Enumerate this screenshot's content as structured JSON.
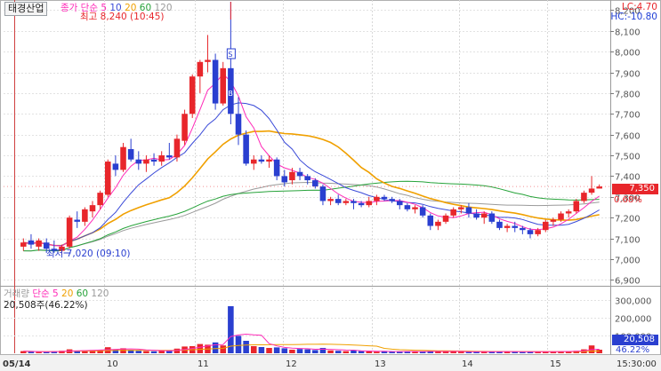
{
  "header": {
    "stock_name": "태경산업",
    "legend_price": [
      {
        "text": "종가 단순",
        "color": "#ff2ab8"
      },
      {
        "text": "5",
        "color": "#ff2ab8"
      },
      {
        "text": "10",
        "color": "#3a4ad8"
      },
      {
        "text": "20",
        "color": "#f0a000"
      },
      {
        "text": "60",
        "color": "#27a33a"
      },
      {
        "text": "120",
        "color": "#9a9a9a"
      }
    ],
    "lc": "LC:4.70",
    "hc": "HC:-10.80"
  },
  "volume_legend": {
    "title": "거래량",
    "items": [
      {
        "text": "단순 5",
        "color": "#ff2ab8"
      },
      {
        "text": "20",
        "color": "#f0a000"
      },
      {
        "text": "60",
        "color": "#27a33a"
      },
      {
        "text": "120",
        "color": "#9a9a9a"
      }
    ],
    "current": "20,508주(46.22%)"
  },
  "annotations": {
    "high": "최고 8,240 (10:45)",
    "low": "최저 7,020 (09:10)"
  },
  "badges": {
    "current_price": "7,350",
    "change_pct": "0.68%",
    "current_volume": "20,508",
    "volume_pct": "46.22%"
  },
  "colors": {
    "up": "#e8262b",
    "down": "#2a3fd0",
    "ma5": "#ff2ab8",
    "ma10": "#3a4ad8",
    "ma20": "#f0a000",
    "ma60": "#27a33a",
    "ma120": "#9a9a9a"
  },
  "chart_data": {
    "type": "candlestick",
    "price_axis": {
      "ticks": [
        "8,200",
        "8,100",
        "8,000",
        "7,900",
        "7,800",
        "7,700",
        "7,600",
        "7,500",
        "7,400",
        "7,300",
        "7,200",
        "7,100",
        "7,000",
        "6,900"
      ],
      "min": 6880,
      "max": 8240
    },
    "volume_axis": {
      "ticks": [
        "300,000",
        "200,000",
        "100,000"
      ]
    },
    "x_axis": {
      "labels": [
        "05/14",
        "10",
        "11",
        "12",
        "13",
        "14",
        "15"
      ],
      "right_label": "15:30:00"
    },
    "ohlc": [
      [
        7060,
        7100,
        7040,
        7080
      ],
      [
        7090,
        7120,
        7050,
        7070
      ],
      [
        7060,
        7100,
        7040,
        7090
      ],
      [
        7080,
        7100,
        7030,
        7050
      ],
      [
        7050,
        7090,
        7030,
        7040
      ],
      [
        7040,
        7070,
        7020,
        7060
      ],
      [
        7060,
        7210,
        7050,
        7200
      ],
      [
        7190,
        7230,
        7150,
        7180
      ],
      [
        7180,
        7250,
        7160,
        7240
      ],
      [
        7230,
        7280,
        7200,
        7260
      ],
      [
        7260,
        7330,
        7240,
        7320
      ],
      [
        7310,
        7480,
        7300,
        7470
      ],
      [
        7460,
        7500,
        7400,
        7430
      ],
      [
        7430,
        7560,
        7420,
        7540
      ],
      [
        7530,
        7580,
        7470,
        7480
      ],
      [
        7480,
        7520,
        7430,
        7460
      ],
      [
        7460,
        7500,
        7420,
        7480
      ],
      [
        7480,
        7510,
        7450,
        7470
      ],
      [
        7470,
        7520,
        7450,
        7500
      ],
      [
        7500,
        7560,
        7480,
        7490
      ],
      [
        7490,
        7600,
        7470,
        7580
      ],
      [
        7570,
        7720,
        7550,
        7700
      ],
      [
        7700,
        7890,
        7680,
        7880
      ],
      [
        7880,
        7960,
        7800,
        7950
      ],
      [
        7950,
        8080,
        7900,
        7960
      ],
      [
        7960,
        7990,
        7720,
        7750
      ],
      [
        7750,
        7950,
        7740,
        7920
      ],
      [
        7920,
        8240,
        7650,
        7700
      ],
      [
        7700,
        7780,
        7550,
        7600
      ],
      [
        7600,
        7620,
        7450,
        7460
      ],
      [
        7460,
        7500,
        7430,
        7480
      ],
      [
        7480,
        7500,
        7460,
        7470
      ],
      [
        7470,
        7500,
        7440,
        7480
      ],
      [
        7480,
        7490,
        7380,
        7400
      ],
      [
        7400,
        7430,
        7350,
        7370
      ],
      [
        7380,
        7440,
        7360,
        7420
      ],
      [
        7420,
        7440,
        7380,
        7400
      ],
      [
        7400,
        7410,
        7360,
        7380
      ],
      [
        7380,
        7390,
        7340,
        7350
      ],
      [
        7350,
        7360,
        7260,
        7280
      ],
      [
        7280,
        7300,
        7260,
        7290
      ],
      [
        7290,
        7310,
        7260,
        7270
      ],
      [
        7270,
        7290,
        7260,
        7280
      ],
      [
        7280,
        7290,
        7240,
        7270
      ],
      [
        7270,
        7280,
        7250,
        7260
      ],
      [
        7260,
        7300,
        7250,
        7280
      ],
      [
        7280,
        7310,
        7260,
        7300
      ],
      [
        7300,
        7310,
        7280,
        7290
      ],
      [
        7290,
        7300,
        7270,
        7280
      ],
      [
        7280,
        7290,
        7240,
        7260
      ],
      [
        7260,
        7270,
        7230,
        7240
      ],
      [
        7240,
        7260,
        7220,
        7250
      ],
      [
        7250,
        7260,
        7200,
        7210
      ],
      [
        7210,
        7220,
        7140,
        7160
      ],
      [
        7160,
        7190,
        7140,
        7180
      ],
      [
        7180,
        7220,
        7170,
        7210
      ],
      [
        7210,
        7250,
        7200,
        7240
      ],
      [
        7240,
        7260,
        7220,
        7250
      ],
      [
        7250,
        7270,
        7200,
        7220
      ],
      [
        7220,
        7240,
        7190,
        7200
      ],
      [
        7200,
        7230,
        7170,
        7220
      ],
      [
        7220,
        7230,
        7170,
        7180
      ],
      [
        7180,
        7190,
        7140,
        7150
      ],
      [
        7150,
        7170,
        7130,
        7160
      ],
      [
        7160,
        7180,
        7130,
        7150
      ],
      [
        7150,
        7160,
        7120,
        7140
      ],
      [
        7140,
        7150,
        7100,
        7120
      ],
      [
        7120,
        7150,
        7110,
        7140
      ],
      [
        7140,
        7190,
        7130,
        7180
      ],
      [
        7180,
        7200,
        7160,
        7190
      ],
      [
        7190,
        7230,
        7180,
        7220
      ],
      [
        7220,
        7240,
        7200,
        7230
      ],
      [
        7230,
        7290,
        7220,
        7280
      ],
      [
        7280,
        7330,
        7270,
        7320
      ],
      [
        7320,
        7400,
        7310,
        7340
      ],
      [
        7340,
        7360,
        7340,
        7350
      ]
    ],
    "volume": [
      12,
      9,
      7,
      8,
      11,
      14,
      22,
      13,
      16,
      18,
      20,
      34,
      21,
      28,
      19,
      14,
      12,
      11,
      17,
      15,
      26,
      38,
      40,
      52,
      48,
      61,
      44,
      265,
      98,
      70,
      40,
      35,
      30,
      33,
      28,
      20,
      24,
      22,
      18,
      30,
      16,
      14,
      12,
      15,
      12,
      10,
      9,
      11,
      8,
      10,
      12,
      9,
      8,
      14,
      10,
      9,
      11,
      8,
      7,
      9,
      8,
      10,
      12,
      9,
      8,
      7,
      9,
      10,
      8,
      9,
      11,
      12,
      14,
      22,
      44,
      20
    ]
  }
}
